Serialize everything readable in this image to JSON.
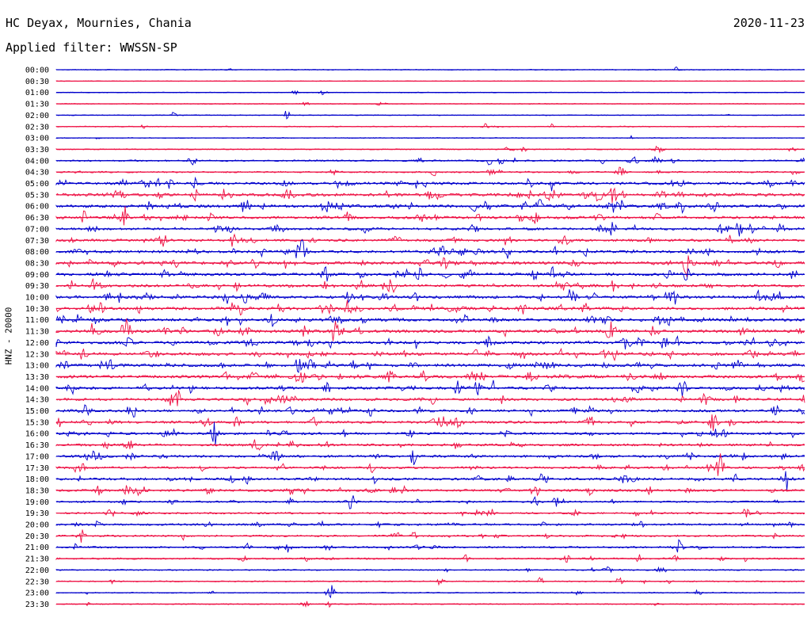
{
  "header": {
    "station": "HC Deyax, Mournies, Chania",
    "date": "2020-11-23",
    "filter": "Applied filter: WWSSN-SP",
    "channel": "HNZ - 20000"
  },
  "colors": {
    "series_a": "#0000cc",
    "series_b": "#ee1144",
    "background": "#ffffff",
    "text": "#000000"
  },
  "chart_data": {
    "type": "line",
    "title": "HC Deyax, Mournies, Chania",
    "ylabel": "HNZ - 20000",
    "rows": [
      {
        "label": "00:00",
        "color": "#0000cc",
        "activity": 0.05
      },
      {
        "label": "00:30",
        "color": "#ee1144",
        "activity": 0.0
      },
      {
        "label": "01:00",
        "color": "#0000cc",
        "activity": 0.05
      },
      {
        "label": "01:30",
        "color": "#ee1144",
        "activity": 0.05
      },
      {
        "label": "02:00",
        "color": "#0000cc",
        "activity": 0.05
      },
      {
        "label": "02:30",
        "color": "#ee1144",
        "activity": 0.1
      },
      {
        "label": "03:00",
        "color": "#0000cc",
        "activity": 0.05
      },
      {
        "label": "03:30",
        "color": "#ee1144",
        "activity": 0.1
      },
      {
        "label": "04:00",
        "color": "#0000cc",
        "activity": 0.25
      },
      {
        "label": "04:30",
        "color": "#ee1144",
        "activity": 0.25
      },
      {
        "label": "05:00",
        "color": "#0000cc",
        "activity": 0.55
      },
      {
        "label": "05:30",
        "color": "#ee1144",
        "activity": 0.6
      },
      {
        "label": "06:00",
        "color": "#0000cc",
        "activity": 0.6
      },
      {
        "label": "06:30",
        "color": "#ee1144",
        "activity": 0.55
      },
      {
        "label": "07:00",
        "color": "#0000cc",
        "activity": 0.45
      },
      {
        "label": "07:30",
        "color": "#ee1144",
        "activity": 0.45
      },
      {
        "label": "08:00",
        "color": "#0000cc",
        "activity": 0.55
      },
      {
        "label": "08:30",
        "color": "#ee1144",
        "activity": 0.6
      },
      {
        "label": "09:00",
        "color": "#0000cc",
        "activity": 0.6
      },
      {
        "label": "09:30",
        "color": "#ee1144",
        "activity": 0.55
      },
      {
        "label": "10:00",
        "color": "#0000cc",
        "activity": 0.6
      },
      {
        "label": "10:30",
        "color": "#ee1144",
        "activity": 0.6
      },
      {
        "label": "11:00",
        "color": "#0000cc",
        "activity": 0.6
      },
      {
        "label": "11:30",
        "color": "#ee1144",
        "activity": 0.6
      },
      {
        "label": "12:00",
        "color": "#0000cc",
        "activity": 0.6
      },
      {
        "label": "12:30",
        "color": "#ee1144",
        "activity": 0.6
      },
      {
        "label": "13:00",
        "color": "#0000cc",
        "activity": 0.6
      },
      {
        "label": "13:30",
        "color": "#ee1144",
        "activity": 0.6
      },
      {
        "label": "14:00",
        "color": "#0000cc",
        "activity": 0.55
      },
      {
        "label": "14:30",
        "color": "#ee1144",
        "activity": 0.5
      },
      {
        "label": "15:00",
        "color": "#0000cc",
        "activity": 0.5
      },
      {
        "label": "15:30",
        "color": "#ee1144",
        "activity": 0.5
      },
      {
        "label": "16:00",
        "color": "#0000cc",
        "activity": 0.45
      },
      {
        "label": "16:30",
        "color": "#ee1144",
        "activity": 0.45
      },
      {
        "label": "17:00",
        "color": "#0000cc",
        "activity": 0.45
      },
      {
        "label": "17:30",
        "color": "#ee1144",
        "activity": 0.4
      },
      {
        "label": "18:00",
        "color": "#0000cc",
        "activity": 0.45
      },
      {
        "label": "18:30",
        "color": "#ee1144",
        "activity": 0.45
      },
      {
        "label": "19:00",
        "color": "#0000cc",
        "activity": 0.3
      },
      {
        "label": "19:30",
        "color": "#ee1144",
        "activity": 0.3
      },
      {
        "label": "20:00",
        "color": "#0000cc",
        "activity": 0.35
      },
      {
        "label": "20:30",
        "color": "#ee1144",
        "activity": 0.3
      },
      {
        "label": "21:00",
        "color": "#0000cc",
        "activity": 0.3
      },
      {
        "label": "21:30",
        "color": "#ee1144",
        "activity": 0.25
      },
      {
        "label": "22:00",
        "color": "#0000cc",
        "activity": 0.15
      },
      {
        "label": "22:30",
        "color": "#ee1144",
        "activity": 0.15
      },
      {
        "label": "23:00",
        "color": "#0000cc",
        "activity": 0.1
      },
      {
        "label": "23:30",
        "color": "#ee1144",
        "activity": 0.1
      }
    ]
  }
}
